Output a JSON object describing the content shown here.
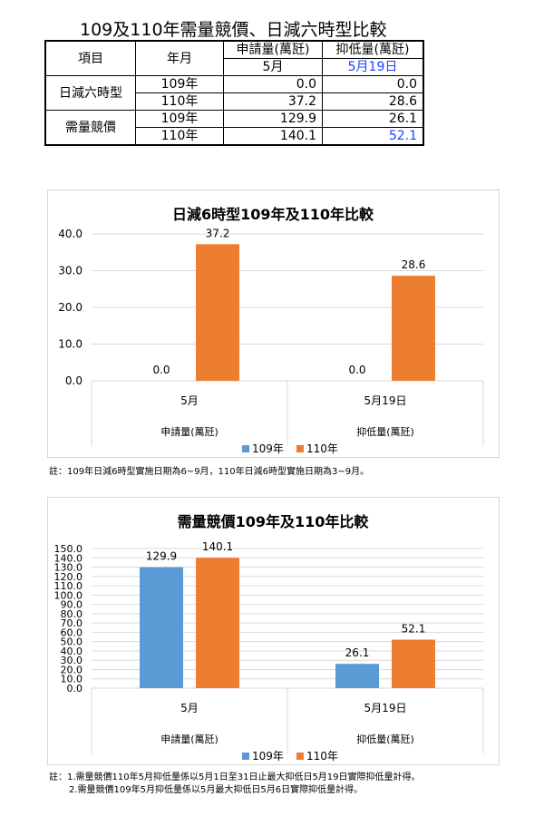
{
  "page_title": "109及110年需量競價、日減六時型比較",
  "table": {
    "header": {
      "item": "項目",
      "year": "年月",
      "apply": "申請量(萬瓩)",
      "reduce": "抑低量(萬瓩)",
      "apply_month": "5月",
      "reduce_date": "5月19日"
    },
    "groups": [
      {
        "name": "日減六時型",
        "rows": [
          {
            "year": "109年",
            "apply": "0.0",
            "reduce": "0.0"
          },
          {
            "year": "110年",
            "apply": "37.2",
            "reduce": "28.6"
          }
        ]
      },
      {
        "name": "需量競價",
        "rows": [
          {
            "year": "109年",
            "apply": "129.9",
            "reduce": "26.1"
          },
          {
            "year": "110年",
            "apply": "140.1",
            "reduce": "52.1"
          }
        ]
      }
    ]
  },
  "chart_data": [
    {
      "type": "bar",
      "title": "日減6時型109年及110年比較",
      "categories": [
        "5月",
        "5月19日"
      ],
      "groups": [
        "申請量(萬瓩)",
        "抑低量(萬瓩)"
      ],
      "series": [
        {
          "name": "109年",
          "values": [
            0.0,
            0.0
          ],
          "color": "#5b9bd5"
        },
        {
          "name": "110年",
          "values": [
            37.2,
            28.6
          ],
          "color": "#ed7d31"
        }
      ],
      "ylim": [
        0,
        40
      ],
      "yticks": [
        "0.0",
        "10.0",
        "20.0",
        "30.0",
        "40.0"
      ],
      "legend": "bottom",
      "grid": true
    },
    {
      "type": "bar",
      "title": "需量競價109年及110年比較",
      "categories": [
        "5月",
        "5月19日"
      ],
      "groups": [
        "申請量(萬瓩)",
        "抑低量(萬瓩)"
      ],
      "series": [
        {
          "name": "109年",
          "values": [
            129.9,
            26.1
          ],
          "color": "#5b9bd5"
        },
        {
          "name": "110年",
          "values": [
            140.1,
            52.1
          ],
          "color": "#ed7d31"
        }
      ],
      "ylim": [
        0,
        150
      ],
      "yticks": [
        "0.0",
        "10.0",
        "20.0",
        "30.0",
        "40.0",
        "50.0",
        "60.0",
        "70.0",
        "80.0",
        "90.0",
        "100.0",
        "110.0",
        "120.0",
        "130.0",
        "140.0",
        "150.0"
      ],
      "legend": "bottom",
      "grid": true
    }
  ],
  "notes": {
    "note1": "註：109年日減6時型實施日期為6~9月，110年日減6時型實施日期為3~9月。",
    "note2_line1": "註：1.需量競價110年5月抑低量係以5月1日至31日止最大抑低日5月19日實際抑低量計得。",
    "note2_line2": "2.需量競價109年5月抑低量係以5月最大抑低日5月6日實際抑低量計得。"
  }
}
